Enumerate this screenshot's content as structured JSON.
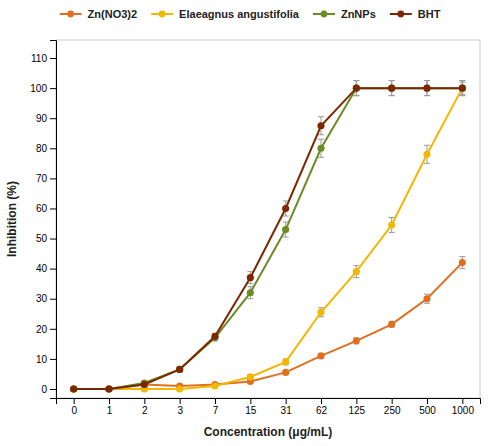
{
  "chart_data": {
    "type": "line",
    "xlabel": "Concentration (μg/mL)",
    "ylabel": "Inhibition (%)",
    "categories": [
      "0",
      "1",
      "2",
      "3",
      "7",
      "15",
      "31",
      "62",
      "125",
      "250",
      "500",
      "1000"
    ],
    "series": [
      {
        "name": "Zn(NO3)2",
        "color": "#E07020",
        "marker": "circle",
        "values": [
          0,
          0,
          1.5,
          1.0,
          1.5,
          2.5,
          5.5,
          11.0,
          16.0,
          21.5,
          30.0,
          42.0
        ],
        "errors": [
          0.3,
          0.3,
          0.3,
          0.3,
          0.3,
          0.5,
          0.5,
          0.8,
          1.0,
          1.0,
          1.5,
          2.0
        ]
      },
      {
        "name": "Elaeagnus angustifolia",
        "color": "#F0B800",
        "marker": "circle",
        "values": [
          0,
          0,
          0,
          0,
          1.0,
          4.0,
          9.0,
          25.5,
          39.0,
          54.5,
          78.0,
          100.0
        ],
        "errors": [
          0.3,
          0.3,
          0.3,
          0.3,
          0.5,
          0.8,
          1.0,
          1.5,
          2.0,
          2.5,
          3.0,
          2.0
        ]
      },
      {
        "name": "ZnNPs",
        "color": "#6B8C23",
        "marker": "circle",
        "values": [
          0,
          0,
          2.0,
          6.5,
          17.0,
          32.0,
          53.0,
          80.0,
          100.0,
          100.0,
          100.0,
          100.0
        ],
        "errors": [
          0.3,
          0.3,
          0.5,
          0.8,
          1.0,
          2.0,
          2.5,
          3.0,
          2.5,
          2.5,
          2.5,
          2.5
        ]
      },
      {
        "name": "BHT",
        "color": "#7B2800",
        "marker": "circle",
        "values": [
          0,
          0,
          1.5,
          6.5,
          17.5,
          37.0,
          60.0,
          87.5,
          100.0,
          100.0,
          100.0,
          100.0
        ],
        "errors": [
          0.3,
          0.3,
          0.5,
          0.8,
          1.0,
          2.0,
          2.5,
          3.0,
          2.5,
          2.5,
          2.5,
          2.5
        ]
      }
    ],
    "ylim": [
      -3,
      116
    ],
    "yticks": [
      0,
      10,
      20,
      30,
      40,
      50,
      60,
      70,
      80,
      90,
      100,
      110
    ],
    "legend": "top",
    "grid": false
  }
}
